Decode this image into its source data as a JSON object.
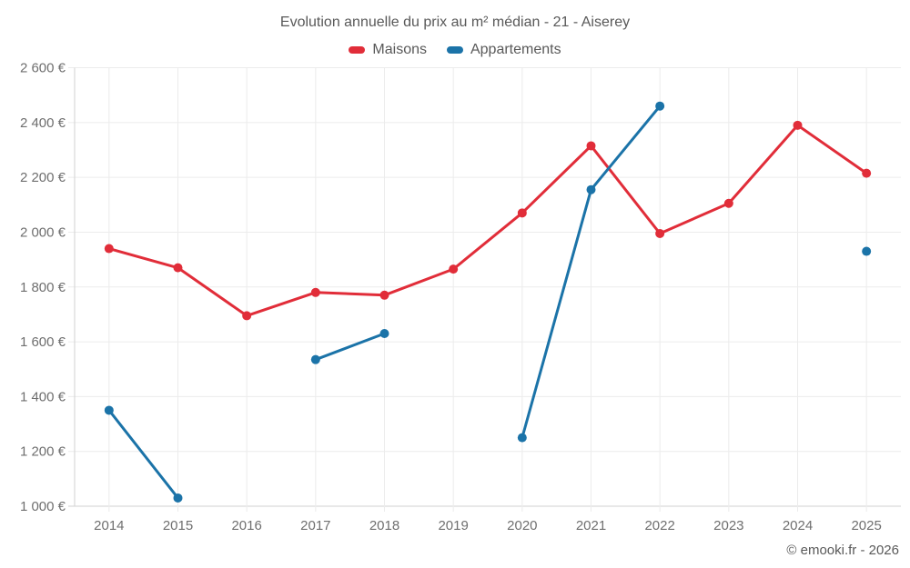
{
  "chart_data": {
    "type": "line",
    "title": "Evolution annuelle du prix au m² médian - 21 - Aiserey",
    "categories": [
      "2014",
      "2015",
      "2016",
      "2017",
      "2018",
      "2019",
      "2020",
      "2021",
      "2022",
      "2023",
      "2024",
      "2025"
    ],
    "series": [
      {
        "name": "Maisons",
        "color": "#e12d39",
        "values": [
          1940,
          1870,
          1695,
          1780,
          1770,
          1865,
          2070,
          2315,
          1995,
          2105,
          2390,
          2215
        ]
      },
      {
        "name": "Appartements",
        "color": "#1b73a8",
        "values": [
          1350,
          1030,
          null,
          1535,
          1630,
          null,
          1250,
          2155,
          2460,
          null,
          null,
          1930
        ]
      }
    ],
    "ylim": [
      1000,
      2600
    ],
    "yticks": [
      {
        "value": 1000,
        "label": "1 000 €"
      },
      {
        "value": 1200,
        "label": "1 200 €"
      },
      {
        "value": 1400,
        "label": "1 400 €"
      },
      {
        "value": 1600,
        "label": "1 600 €"
      },
      {
        "value": 1800,
        "label": "1 800 €"
      },
      {
        "value": 2000,
        "label": "2 000 €"
      },
      {
        "value": 2200,
        "label": "2 200 €"
      },
      {
        "value": 2400,
        "label": "2 400 €"
      },
      {
        "value": 2600,
        "label": "2 600 €"
      }
    ],
    "grid": true,
    "legend_position": "top"
  },
  "footer": {
    "copyright": "© emooki.fr - 2026"
  }
}
